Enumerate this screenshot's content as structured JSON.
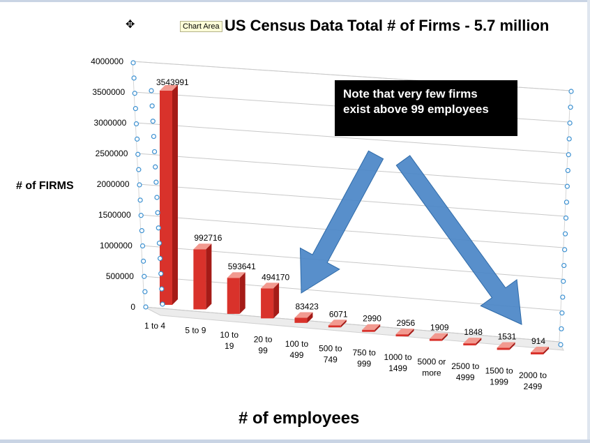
{
  "window": {
    "tooltip": "Chart Area"
  },
  "annotation": {
    "line1": "Note that very few firms",
    "line2": "exist above  99 employees"
  },
  "colors": {
    "bar_front": "#d9322b",
    "bar_side": "#a51b17",
    "bar_top": "#f29a90",
    "arrow": "#4a86c7",
    "handle": "#3a8fd0"
  },
  "icons": {
    "cursor": "move-cursor-icon",
    "arrows": "arrow-icon",
    "handles": "selection-handle-icon"
  },
  "chart_data": {
    "type": "bar",
    "title": "US Census Data Total # of Firms - 5.7 million",
    "xlabel": "# of employees",
    "ylabel": "# of FIRMS",
    "ylim": [
      0,
      4000000
    ],
    "yticks": [
      "0",
      "500000",
      "1000000",
      "1500000",
      "2000000",
      "2500000",
      "3000000",
      "3500000",
      "4000000"
    ],
    "grid": true,
    "categories": [
      [
        "1 to 4"
      ],
      [
        "5 to 9"
      ],
      [
        "10 to",
        "19"
      ],
      [
        "20 to",
        "99"
      ],
      [
        "100 to",
        "499"
      ],
      [
        "500 to",
        "749"
      ],
      [
        "750 to",
        "999"
      ],
      [
        "1000 to",
        "1499"
      ],
      [
        "5000 or",
        "more"
      ],
      [
        "2500 to",
        "4999"
      ],
      [
        "1500 to",
        "1999"
      ],
      [
        "2000 to",
        "2499"
      ]
    ],
    "values": [
      3543991,
      992716,
      593641,
      494170,
      83423,
      6071,
      2990,
      2956,
      1909,
      1848,
      1531,
      914
    ],
    "data_labels": [
      "3543991",
      "992716",
      "593641",
      "494170",
      "83423",
      "6071",
      "2990",
      "2956",
      "1909",
      "1848",
      "1531",
      "914"
    ]
  }
}
